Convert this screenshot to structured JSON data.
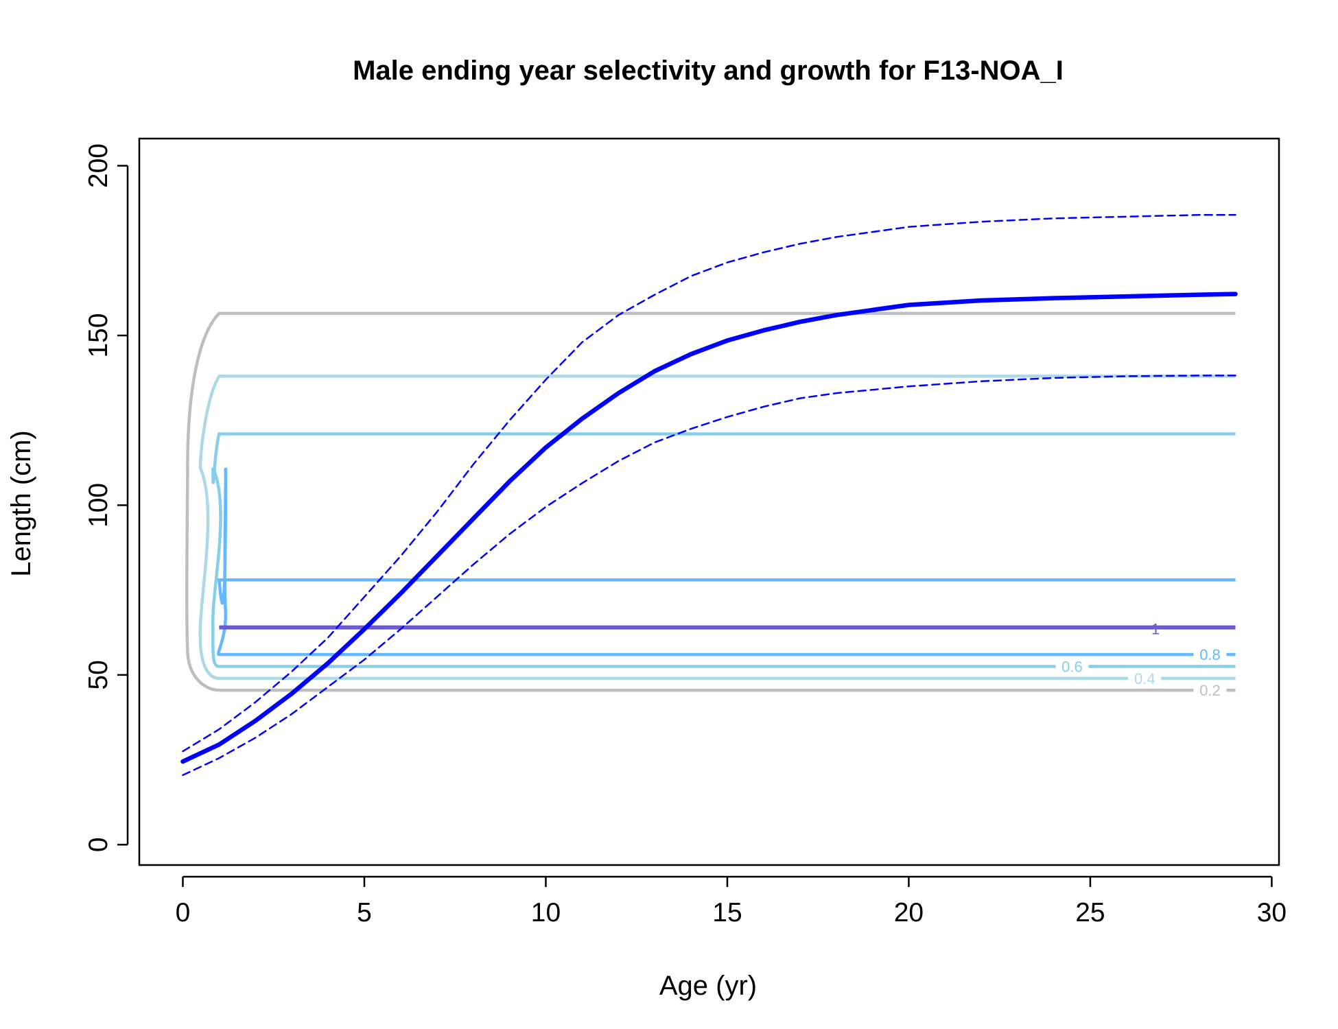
{
  "chart_data": {
    "type": "line",
    "title": "Male ending year selectivity and growth for F13-NOA_I",
    "xlabel": "Age (yr)",
    "ylabel": "Length (cm)",
    "xlim": [
      -1.2,
      30.2
    ],
    "ylim": [
      -6,
      208
    ],
    "xticks": [
      0,
      5,
      10,
      15,
      20,
      25,
      30
    ],
    "yticks": [
      0,
      50,
      100,
      150,
      200
    ],
    "grid": false,
    "legend": "none",
    "growth": {
      "color": "#0000ff",
      "mean": {
        "x": [
          0,
          1,
          2,
          3,
          4,
          5,
          6,
          7,
          8,
          9,
          10,
          11,
          12,
          13,
          14,
          15,
          16,
          17,
          18,
          19,
          20,
          22,
          24,
          26,
          28,
          29
        ],
        "y": [
          24.5,
          29.5,
          36.5,
          44.5,
          53.5,
          63.5,
          74,
          85,
          96,
          107,
          117,
          125.5,
          133,
          139.5,
          144.5,
          148.5,
          151.5,
          154,
          156,
          157.5,
          159,
          160.3,
          161,
          161.5,
          162,
          162.2
        ]
      },
      "upper": {
        "x": [
          0,
          1,
          2,
          3,
          4,
          5,
          6,
          7,
          8,
          9,
          10,
          11,
          12,
          13,
          14,
          15,
          16,
          17,
          18,
          19,
          20,
          22,
          24,
          26,
          28,
          29
        ],
        "y": [
          27.5,
          34,
          42,
          51,
          61,
          73,
          85,
          98,
          112,
          125,
          137,
          148,
          156,
          162,
          167.5,
          171.5,
          174.5,
          177,
          179,
          180.5,
          182,
          183.5,
          184.5,
          185,
          185.5,
          185.5
        ]
      },
      "lower": {
        "x": [
          0,
          1,
          2,
          3,
          4,
          5,
          6,
          7,
          8,
          9,
          10,
          11,
          12,
          13,
          14,
          15,
          16,
          17,
          18,
          19,
          20,
          22,
          24,
          26,
          28,
          29
        ],
        "y": [
          20.5,
          25.5,
          31.5,
          38.5,
          46.5,
          54.5,
          63.5,
          73,
          82.5,
          91.5,
          99.5,
          106.5,
          113,
          118.5,
          122.5,
          126,
          129,
          131.5,
          133,
          134,
          135,
          136.5,
          137.5,
          138,
          138.2,
          138.2
        ]
      }
    },
    "selectivity_contours": [
      {
        "level": "0.2",
        "color": "#bebebe",
        "low": 45.5,
        "high": 156.5,
        "notch": 0,
        "label_x": 28.3
      },
      {
        "level": "0.4",
        "color": "#add8e6",
        "low": 49,
        "high": 138,
        "notch": 0.5,
        "label_x": 26.5
      },
      {
        "level": "0.6",
        "color": "#87ceeb",
        "low": 52.5,
        "high": 121,
        "notch": 0.5,
        "label_x": 24.5
      },
      {
        "level": "0.8",
        "color": "#63b8ff",
        "low": 56,
        "high": 78,
        "notch": 0,
        "label_x": 28.3
      },
      {
        "level": "1",
        "color": "#6a5acd",
        "low": 64,
        "high": 64,
        "notch": 0,
        "label_x": 26.8
      }
    ]
  }
}
